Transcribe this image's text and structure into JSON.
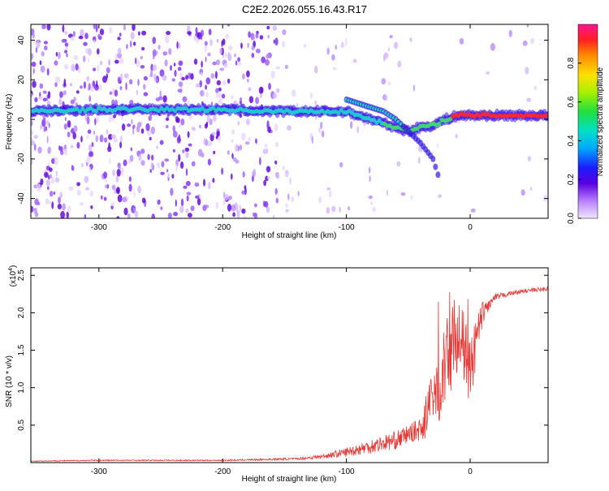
{
  "title": "C2E2.2026.055.16.43.R17",
  "chart_data": [
    {
      "type": "heatmap",
      "xlabel": "Height of straight line (km)",
      "ylabel": "Frequency (Hz)",
      "xlim": [
        -355,
        63
      ],
      "ylim": [
        -50,
        48
      ],
      "xticks": [
        -300,
        -200,
        -100,
        0
      ],
      "xtick_labels": [
        "-300",
        "-200",
        "-100",
        "0"
      ],
      "yticks": [
        -40,
        -20,
        0,
        20,
        40
      ],
      "ytick_labels": [
        "-40",
        "-20",
        "0",
        "20",
        "40"
      ],
      "colorbar": {
        "label": "Normalized spectral amplitude",
        "range": [
          0.0,
          1.0
        ],
        "ticks": [
          0.0,
          0.2,
          0.4,
          0.6,
          0.8
        ],
        "tick_labels": [
          "0.0",
          "0.2",
          "0.4",
          "0.6",
          "0.8"
        ]
      },
      "ridge": {
        "x": [
          -355,
          -300,
          -250,
          -200,
          -160,
          -130,
          -110,
          -100,
          -90,
          -80,
          -70,
          -60,
          -50,
          -40,
          -30,
          -20,
          -10,
          0,
          20,
          40,
          63
        ],
        "freq": [
          4,
          5,
          5,
          5,
          4,
          4,
          4,
          4,
          2,
          0,
          -2,
          -4,
          -6,
          -4,
          -3,
          0,
          2,
          2,
          2,
          2,
          2
        ]
      },
      "secondary_branch": {
        "x": [
          -100,
          -90,
          -80,
          -70,
          -60,
          -50,
          -40,
          -30,
          -25
        ],
        "freq": [
          10,
          8,
          6,
          4,
          0,
          -6,
          -12,
          -20,
          -30
        ]
      }
    },
    {
      "type": "line",
      "xlabel": "Height of straight line (km)",
      "ylabel": "SNR (10 * v/v)",
      "y_multiplier": "(x10",
      "y_multiplier_exp": "4",
      "y_multiplier_close": ")",
      "xlim": [
        -355,
        63
      ],
      "ylim": [
        0,
        2.6
      ],
      "xticks": [
        -300,
        -200,
        -100,
        0
      ],
      "xtick_labels": [
        "-300",
        "-200",
        "-100",
        "0"
      ],
      "yticks": [
        0.5,
        1.0,
        1.5,
        2.0,
        2.5
      ],
      "ytick_labels": [
        "0.5",
        "1.0",
        "1.5",
        "2.0",
        "2.5"
      ],
      "series": [
        {
          "name": "SNR",
          "color": "#e53935",
          "envelope_x": [
            -355,
            -300,
            -200,
            -140,
            -120,
            -100,
            -80,
            -60,
            -50,
            -40,
            -30,
            -20,
            -15,
            -10,
            -5,
            0,
            5,
            10,
            15,
            20,
            30,
            40,
            50,
            63
          ],
          "envelope_y": [
            0.02,
            0.03,
            0.03,
            0.05,
            0.08,
            0.14,
            0.22,
            0.3,
            0.38,
            0.45,
            0.8,
            1.3,
            1.55,
            1.75,
            1.5,
            1.2,
            1.6,
            2.0,
            2.1,
            2.2,
            2.25,
            2.28,
            2.3,
            2.32
          ],
          "noise_amp": [
            0.005,
            0.008,
            0.008,
            0.015,
            0.03,
            0.06,
            0.1,
            0.12,
            0.12,
            0.15,
            0.5,
            0.55,
            0.6,
            0.5,
            0.5,
            0.4,
            0.35,
            0.15,
            0.08,
            0.05,
            0.03,
            0.03,
            0.03,
            0.03
          ]
        }
      ]
    }
  ],
  "colors": {
    "signal": "#e53935",
    "frame": "#000000",
    "background": "#ffffff"
  }
}
